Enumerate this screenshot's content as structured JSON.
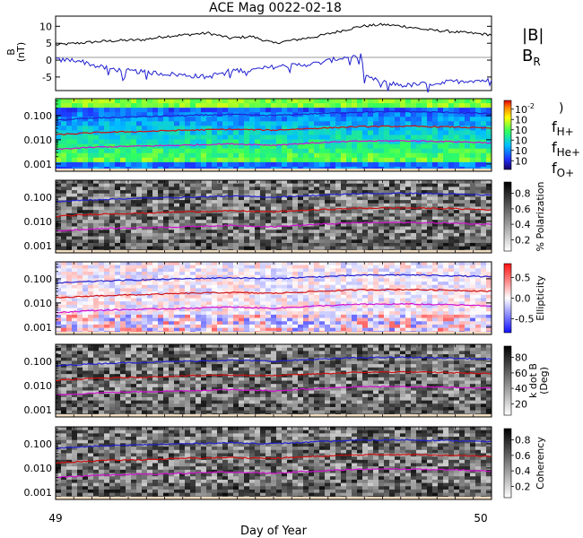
{
  "title": "ACE Mag 0022-02-18",
  "xlabel": "Day of Year",
  "x_ticks": [
    "49",
    "50"
  ],
  "xlim": [
    49,
    50
  ],
  "legend": {
    "b_total": "|B|",
    "b_r": "B",
    "b_r_sub": "R",
    "f_h": "f",
    "f_h_sub": "H+",
    "f_he": "f",
    "f_he_sub": "He+",
    "f_o": "f",
    "f_o_sub": "O+",
    "paren": ")"
  },
  "colors": {
    "b_total": "#000000",
    "b_r": "#2020d0",
    "f_h": "#2020d0",
    "f_he": "#d01010",
    "f_o": "#d010d0"
  },
  "panels": [
    {
      "id": "field",
      "ylabel": "B",
      "ylabel_unit": "(nT)",
      "y_ticks": [
        "10",
        "5",
        "0",
        "-5"
      ]
    },
    {
      "id": "power",
      "y_ticks": [
        "0.100",
        "0.010",
        "0.001"
      ],
      "colorbar_ticks": [
        "10",
        "10",
        "10",
        "10",
        "10",
        "10"
      ],
      "colorbar_exp_top": "-2",
      "colorbar_label": ""
    },
    {
      "id": "polarization",
      "y_ticks": [
        "0.100",
        "0.010",
        "0.001"
      ],
      "colorbar_ticks": [
        "0.8",
        "0.6",
        "0.4",
        "0.2"
      ],
      "colorbar_label": "% Polarization"
    },
    {
      "id": "ellipticity",
      "y_ticks": [
        "0.100",
        "0.010",
        "0.001"
      ],
      "colorbar_ticks": [
        "0.5",
        "0.0",
        "-0.5"
      ],
      "colorbar_label": "Ellipticity"
    },
    {
      "id": "kdotb",
      "y_ticks": [
        "0.100",
        "0.010",
        "0.001"
      ],
      "colorbar_ticks": [
        "80",
        "60",
        "40",
        "20"
      ],
      "colorbar_label": "k dot B",
      "colorbar_label2": "(Deg)"
    },
    {
      "id": "coherency",
      "y_ticks": [
        "0.100",
        "0.010",
        "0.001"
      ],
      "colorbar_ticks": [
        "0.8",
        "0.6",
        "0.4",
        "0.2"
      ],
      "colorbar_label": "Coherency"
    }
  ],
  "chart_data": [
    {
      "type": "line",
      "panel": "field",
      "ylim": [
        -9,
        13
      ],
      "series": [
        {
          "name": "|B|",
          "x": [
            49.0,
            49.05,
            49.1,
            49.15,
            49.2,
            49.25,
            49.3,
            49.35,
            49.4,
            49.45,
            49.5,
            49.55,
            49.6,
            49.65,
            49.7,
            49.75,
            49.8,
            49.85,
            49.9,
            49.95,
            50.0
          ],
          "y": [
            4.5,
            5,
            5.5,
            5.8,
            6,
            7,
            7.5,
            8,
            6.5,
            7,
            5,
            6,
            7,
            8.5,
            10,
            10.5,
            10,
            9,
            8.5,
            8,
            7.5
          ]
        },
        {
          "name": "B_R",
          "x": [
            49.0,
            49.05,
            49.1,
            49.15,
            49.2,
            49.25,
            49.3,
            49.35,
            49.4,
            49.45,
            49.5,
            49.55,
            49.6,
            49.65,
            49.7,
            49.71,
            49.75,
            49.8,
            49.85,
            49.9,
            49.95,
            50.0
          ],
          "y": [
            0,
            0,
            -2,
            -3,
            -3.5,
            -4,
            -4.5,
            -5,
            -3,
            -3,
            -2,
            -1.5,
            -1,
            0.5,
            1.5,
            -5,
            -6.5,
            -7.5,
            -7,
            -6.5,
            -6,
            -6
          ]
        }
      ]
    },
    {
      "type": "heatmap",
      "panel": "power",
      "ylim": [
        0.0005,
        0.5
      ],
      "series": [
        {
          "name": "f_H+",
          "x": [
            49.0,
            49.1,
            49.2,
            49.3,
            49.4,
            49.5,
            49.6,
            49.7,
            49.8,
            49.9,
            50.0
          ],
          "y": [
            0.065,
            0.08,
            0.09,
            0.1,
            0.11,
            0.1,
            0.12,
            0.14,
            0.145,
            0.135,
            0.12
          ]
        },
        {
          "name": "f_He+",
          "x": [
            49.0,
            49.1,
            49.2,
            49.3,
            49.4,
            49.5,
            49.6,
            49.7,
            49.8,
            49.9,
            50.0
          ],
          "y": [
            0.016,
            0.02,
            0.022,
            0.025,
            0.027,
            0.025,
            0.03,
            0.035,
            0.036,
            0.034,
            0.03
          ]
        },
        {
          "name": "f_O+",
          "x": [
            49.0,
            49.1,
            49.2,
            49.3,
            49.4,
            49.5,
            49.6,
            49.7,
            49.8,
            49.9,
            50.0
          ],
          "y": [
            0.004,
            0.005,
            0.0055,
            0.006,
            0.0068,
            0.006,
            0.0075,
            0.0088,
            0.009,
            0.0085,
            0.0075
          ]
        }
      ]
    },
    {
      "type": "heatmap",
      "panel": "polarization",
      "zlim": [
        0,
        1
      ]
    },
    {
      "type": "heatmap",
      "panel": "ellipticity",
      "zlim": [
        -1,
        1
      ]
    },
    {
      "type": "heatmap",
      "panel": "kdotb",
      "zlim": [
        0,
        90
      ]
    },
    {
      "type": "heatmap",
      "panel": "coherency",
      "zlim": [
        0,
        1
      ]
    }
  ]
}
